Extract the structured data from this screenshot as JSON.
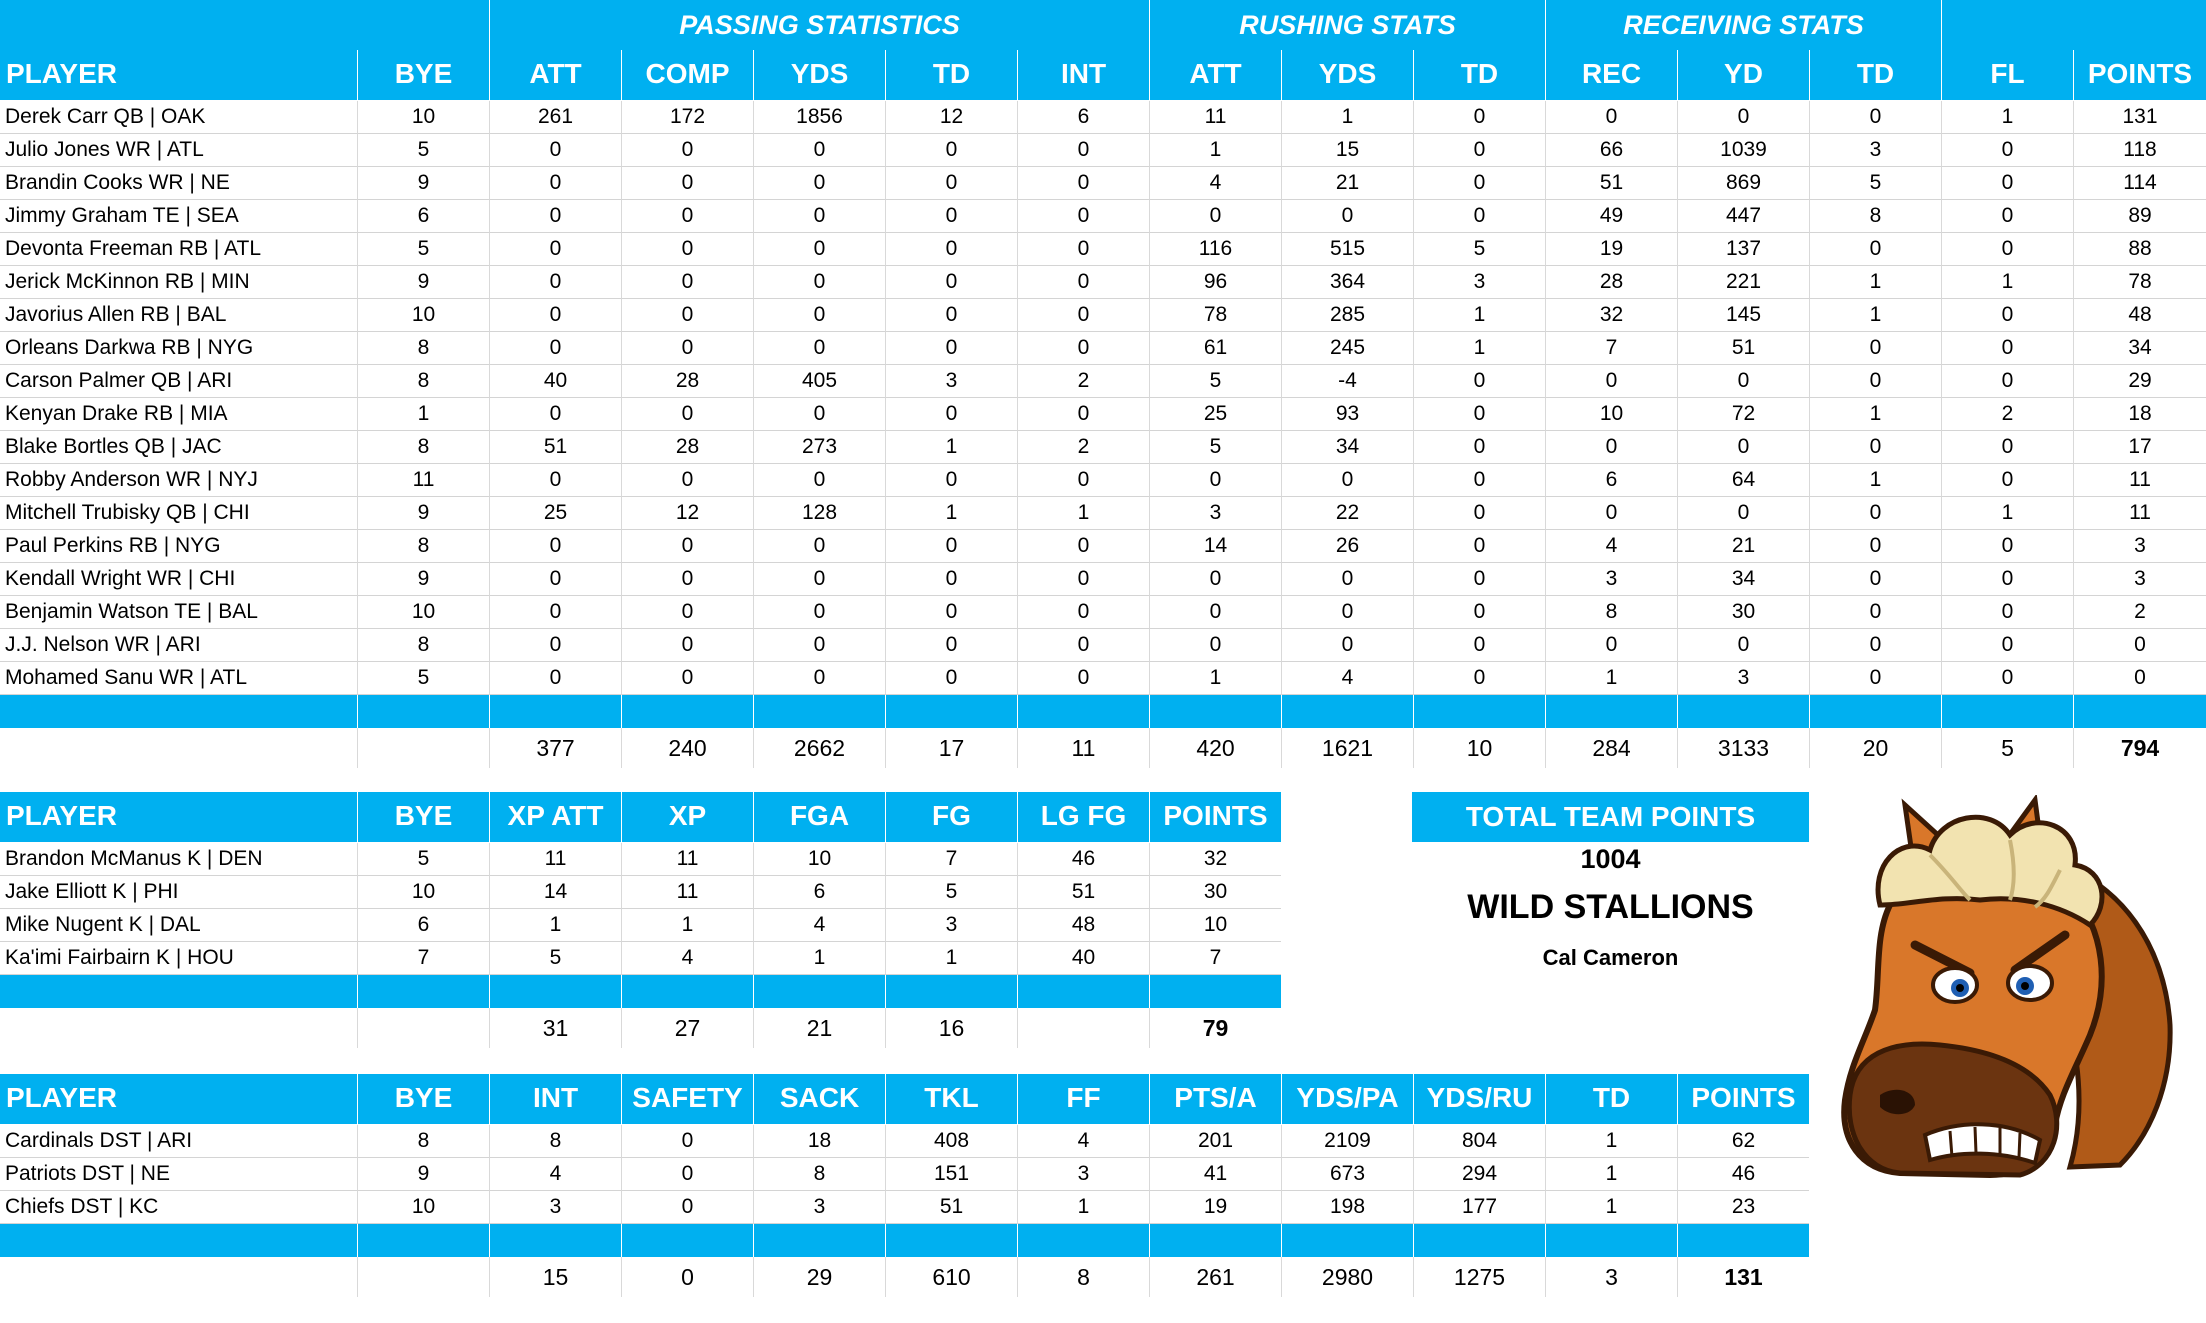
{
  "offense": {
    "groups": [
      "PASSING STATISTICS",
      "RUSHING STATS",
      "RECEIVING STATS"
    ],
    "columns": [
      "PLAYER",
      "BYE",
      "ATT",
      "COMP",
      "YDS",
      "TD",
      "INT",
      "ATT",
      "YDS",
      "TD",
      "REC",
      "YD",
      "TD",
      "FL",
      "POINTS"
    ],
    "rows": [
      [
        "Derek Carr QB | OAK",
        "10",
        "261",
        "172",
        "1856",
        "12",
        "6",
        "11",
        "1",
        "0",
        "0",
        "0",
        "0",
        "1",
        "131"
      ],
      [
        "Julio Jones WR | ATL",
        "5",
        "0",
        "0",
        "0",
        "0",
        "0",
        "1",
        "15",
        "0",
        "66",
        "1039",
        "3",
        "0",
        "118"
      ],
      [
        "Brandin Cooks WR | NE",
        "9",
        "0",
        "0",
        "0",
        "0",
        "0",
        "4",
        "21",
        "0",
        "51",
        "869",
        "5",
        "0",
        "114"
      ],
      [
        "Jimmy Graham TE | SEA",
        "6",
        "0",
        "0",
        "0",
        "0",
        "0",
        "0",
        "0",
        "0",
        "49",
        "447",
        "8",
        "0",
        "89"
      ],
      [
        "Devonta Freeman RB | ATL",
        "5",
        "0",
        "0",
        "0",
        "0",
        "0",
        "116",
        "515",
        "5",
        "19",
        "137",
        "0",
        "0",
        "88"
      ],
      [
        "Jerick McKinnon RB | MIN",
        "9",
        "0",
        "0",
        "0",
        "0",
        "0",
        "96",
        "364",
        "3",
        "28",
        "221",
        "1",
        "1",
        "78"
      ],
      [
        "Javorius Allen RB | BAL",
        "10",
        "0",
        "0",
        "0",
        "0",
        "0",
        "78",
        "285",
        "1",
        "32",
        "145",
        "1",
        "0",
        "48"
      ],
      [
        "Orleans Darkwa RB | NYG",
        "8",
        "0",
        "0",
        "0",
        "0",
        "0",
        "61",
        "245",
        "1",
        "7",
        "51",
        "0",
        "0",
        "34"
      ],
      [
        "Carson Palmer QB | ARI",
        "8",
        "40",
        "28",
        "405",
        "3",
        "2",
        "5",
        "-4",
        "0",
        "0",
        "0",
        "0",
        "0",
        "29"
      ],
      [
        "Kenyan Drake RB | MIA",
        "1",
        "0",
        "0",
        "0",
        "0",
        "0",
        "25",
        "93",
        "0",
        "10",
        "72",
        "1",
        "2",
        "18"
      ],
      [
        "Blake Bortles QB | JAC",
        "8",
        "51",
        "28",
        "273",
        "1",
        "2",
        "5",
        "34",
        "0",
        "0",
        "0",
        "0",
        "0",
        "17"
      ],
      [
        "Robby Anderson WR | NYJ",
        "11",
        "0",
        "0",
        "0",
        "0",
        "0",
        "0",
        "0",
        "0",
        "6",
        "64",
        "1",
        "0",
        "11"
      ],
      [
        "Mitchell Trubisky QB | CHI",
        "9",
        "25",
        "12",
        "128",
        "1",
        "1",
        "3",
        "22",
        "0",
        "0",
        "0",
        "0",
        "1",
        "11"
      ],
      [
        "Paul Perkins RB | NYG",
        "8",
        "0",
        "0",
        "0",
        "0",
        "0",
        "14",
        "26",
        "0",
        "4",
        "21",
        "0",
        "0",
        "3"
      ],
      [
        "Kendall Wright WR | CHI",
        "9",
        "0",
        "0",
        "0",
        "0",
        "0",
        "0",
        "0",
        "0",
        "3",
        "34",
        "0",
        "0",
        "3"
      ],
      [
        "Benjamin Watson TE | BAL",
        "10",
        "0",
        "0",
        "0",
        "0",
        "0",
        "0",
        "0",
        "0",
        "8",
        "30",
        "0",
        "0",
        "2"
      ],
      [
        "J.J. Nelson WR | ARI",
        "8",
        "0",
        "0",
        "0",
        "0",
        "0",
        "0",
        "0",
        "0",
        "0",
        "0",
        "0",
        "0",
        "0"
      ],
      [
        "Mohamed Sanu WR | ATL",
        "5",
        "0",
        "0",
        "0",
        "0",
        "0",
        "1",
        "4",
        "0",
        "1",
        "3",
        "0",
        "0",
        "0"
      ]
    ],
    "totals": [
      "",
      "",
      "377",
      "240",
      "2662",
      "17",
      "11",
      "420",
      "1621",
      "10",
      "284",
      "3133",
      "20",
      "5",
      "794"
    ]
  },
  "kickers": {
    "columns": [
      "PLAYER",
      "BYE",
      "XP ATT",
      "XP",
      "FGA",
      "FG",
      "LG FG",
      "POINTS"
    ],
    "rows": [
      [
        "Brandon McManus K | DEN",
        "5",
        "11",
        "11",
        "10",
        "7",
        "46",
        "32"
      ],
      [
        "Jake Elliott K | PHI",
        "10",
        "14",
        "11",
        "6",
        "5",
        "51",
        "30"
      ],
      [
        "Mike Nugent K | DAL",
        "6",
        "1",
        "1",
        "4",
        "3",
        "48",
        "10"
      ],
      [
        "Ka'imi Fairbairn K | HOU",
        "7",
        "5",
        "4",
        "1",
        "1",
        "40",
        "7"
      ]
    ],
    "totals": [
      "",
      "",
      "31",
      "27",
      "21",
      "16",
      "",
      "79"
    ]
  },
  "defense": {
    "columns": [
      "PLAYER",
      "BYE",
      "INT",
      "SAFETY",
      "SACK",
      "TKL",
      "FF",
      "PTS/A",
      "YDS/PA",
      "YDS/RU",
      "TD",
      "POINTS"
    ],
    "rows": [
      [
        "Cardinals DST | ARI",
        "8",
        "8",
        "0",
        "18",
        "408",
        "4",
        "201",
        "2109",
        "804",
        "1",
        "62"
      ],
      [
        "Patriots DST | NE",
        "9",
        "4",
        "0",
        "8",
        "151",
        "3",
        "41",
        "673",
        "294",
        "1",
        "46"
      ],
      [
        "Chiefs DST | KC",
        "10",
        "3",
        "0",
        "3",
        "51",
        "1",
        "19",
        "198",
        "177",
        "1",
        "23"
      ]
    ],
    "totals": [
      "",
      "",
      "15",
      "0",
      "29",
      "610",
      "8",
      "261",
      "2980",
      "1275",
      "3",
      "131"
    ]
  },
  "summary": {
    "total_label": "TOTAL TEAM POINTS",
    "total_value": "1004",
    "team_name": "WILD STALLIONS",
    "owner": "Cal Cameron"
  },
  "logo": {
    "icon": "stallion-mascot-icon"
  },
  "colors": {
    "header_blue": "#00B0F0",
    "header_text": "#ffffff"
  }
}
